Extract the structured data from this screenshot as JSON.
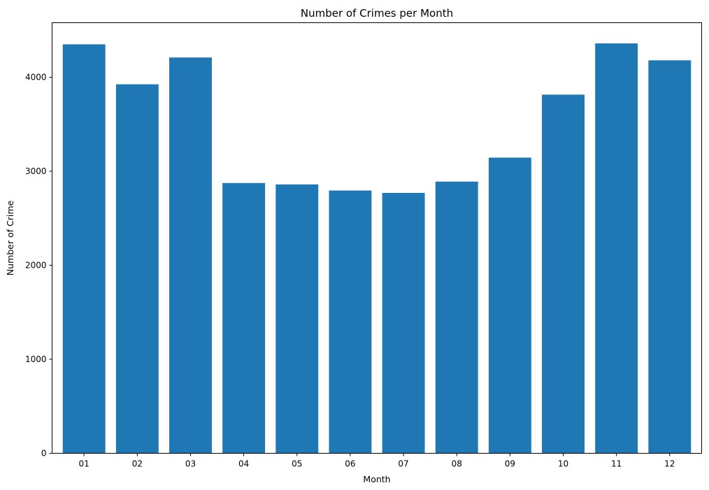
{
  "chart_data": {
    "type": "bar",
    "title": "Number of Crimes per Month",
    "xlabel": "Month",
    "ylabel": "Number of Crime",
    "categories": [
      "01",
      "02",
      "03",
      "04",
      "05",
      "06",
      "07",
      "08",
      "09",
      "10",
      "11",
      "12"
    ],
    "values": [
      4350,
      3925,
      4210,
      2875,
      2860,
      2795,
      2770,
      2890,
      3145,
      3815,
      4360,
      4180
    ],
    "ylim": [
      0,
      4580
    ],
    "yticks": [
      0,
      1000,
      2000,
      3000,
      4000
    ],
    "bar_color": "#1f77b4",
    "grid": false,
    "legend": "none"
  }
}
